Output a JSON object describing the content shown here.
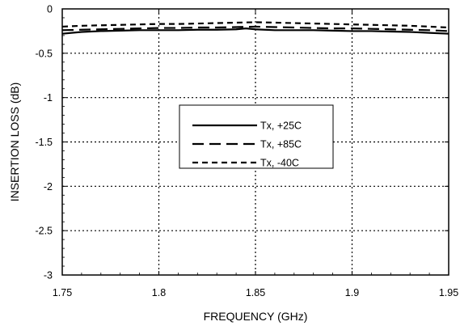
{
  "chart_data": {
    "type": "line",
    "title": "",
    "xlabel": "FREQUENCY (GHz)",
    "ylabel": "INSERTION LOSS (dB)",
    "xlim": [
      1.75,
      1.95
    ],
    "ylim": [
      -3,
      0
    ],
    "xticks": [
      1.75,
      1.8,
      1.85,
      1.9,
      1.95
    ],
    "xtick_labels": [
      "1.75",
      "1.8",
      "1.85",
      "1.9",
      "1.95"
    ],
    "yticks": [
      0,
      -0.5,
      -1,
      -1.5,
      -2,
      -2.5,
      -3
    ],
    "ytick_labels": [
      "0",
      "-0.5",
      "-1",
      "-1.5",
      "-2",
      "-2.5",
      "-3"
    ],
    "grid": true,
    "legend_position": "center",
    "series": [
      {
        "name": "Tx, +25C",
        "style": "solid",
        "color": "#000000",
        "x": [
          1.75,
          1.76,
          1.77,
          1.78,
          1.79,
          1.8,
          1.81,
          1.82,
          1.83,
          1.84,
          1.845,
          1.85,
          1.86,
          1.87,
          1.88,
          1.89,
          1.9,
          1.91,
          1.92,
          1.93,
          1.94,
          1.95
        ],
        "y": [
          -0.28,
          -0.26,
          -0.25,
          -0.245,
          -0.24,
          -0.24,
          -0.24,
          -0.235,
          -0.235,
          -0.23,
          -0.22,
          -0.23,
          -0.24,
          -0.24,
          -0.24,
          -0.245,
          -0.25,
          -0.25,
          -0.255,
          -0.26,
          -0.27,
          -0.28
        ]
      },
      {
        "name": "Tx, +85C",
        "style": "long-dash",
        "color": "#000000",
        "x": [
          1.75,
          1.76,
          1.77,
          1.78,
          1.79,
          1.8,
          1.81,
          1.82,
          1.83,
          1.84,
          1.85,
          1.86,
          1.87,
          1.88,
          1.89,
          1.9,
          1.91,
          1.92,
          1.93,
          1.94,
          1.95
        ],
        "y": [
          -0.24,
          -0.235,
          -0.23,
          -0.225,
          -0.22,
          -0.215,
          -0.215,
          -0.21,
          -0.21,
          -0.205,
          -0.2,
          -0.205,
          -0.21,
          -0.215,
          -0.22,
          -0.22,
          -0.225,
          -0.23,
          -0.235,
          -0.24,
          -0.25
        ]
      },
      {
        "name": "Tx,  -40C",
        "style": "short-dash",
        "color": "#000000",
        "x": [
          1.75,
          1.76,
          1.77,
          1.78,
          1.79,
          1.8,
          1.81,
          1.82,
          1.83,
          1.84,
          1.85,
          1.86,
          1.87,
          1.88,
          1.89,
          1.9,
          1.91,
          1.92,
          1.93,
          1.94,
          1.95
        ],
        "y": [
          -0.2,
          -0.19,
          -0.185,
          -0.18,
          -0.175,
          -0.17,
          -0.17,
          -0.165,
          -0.16,
          -0.155,
          -0.15,
          -0.155,
          -0.16,
          -0.165,
          -0.17,
          -0.175,
          -0.18,
          -0.185,
          -0.19,
          -0.2,
          -0.21
        ]
      }
    ]
  }
}
